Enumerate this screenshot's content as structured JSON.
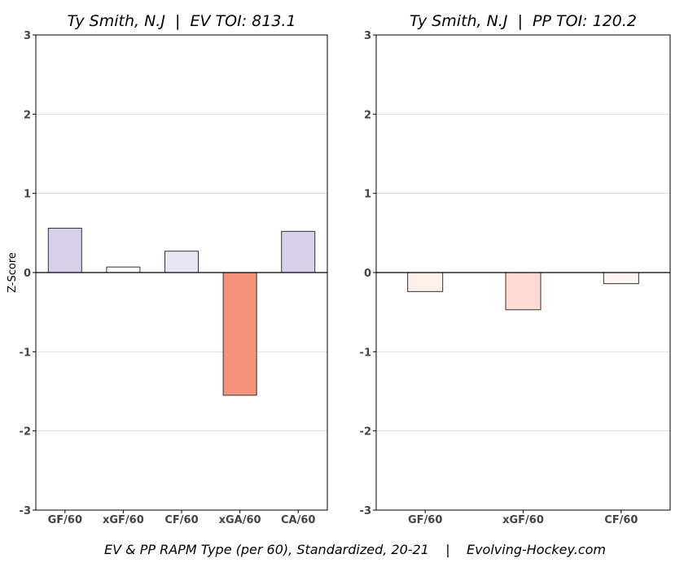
{
  "chart_data": [
    {
      "type": "bar",
      "title": "Ty Smith, N.J  |  EV TOI: 813.1",
      "ylabel": "Z-Score",
      "xlabel": "",
      "ylim": [
        -3,
        3
      ],
      "yticks": [
        "-3",
        "-2",
        "-1",
        "0",
        "1",
        "2",
        "3"
      ],
      "grid": "horizontal",
      "categories": [
        "GF/60",
        "xGF/60",
        "CF/60",
        "xGA/60",
        "CA/60"
      ],
      "values": [
        0.56,
        0.07,
        0.27,
        -1.55,
        0.52
      ],
      "colors": [
        "#d8cfea",
        "#ffffff",
        "#e9e4f3",
        "#f4937a",
        "#d8cfea"
      ]
    },
    {
      "type": "bar",
      "title": "Ty Smith, N.J  |  PP TOI: 120.2",
      "ylabel": "",
      "xlabel": "",
      "ylim": [
        -3,
        3
      ],
      "yticks": [
        "-3",
        "-2",
        "-1",
        "0",
        "1",
        "2",
        "3"
      ],
      "grid": "horizontal",
      "categories": [
        "GF/60",
        "xGF/60",
        "CF/60"
      ],
      "values": [
        -0.24,
        -0.47,
        -0.14
      ],
      "colors": [
        "#fff0eb",
        "#fedcd2",
        "#fff5f2"
      ]
    }
  ],
  "footer": "EV & PP RAPM Type (per 60), Standardized, 20-21    |    Evolving-Hockey.com"
}
